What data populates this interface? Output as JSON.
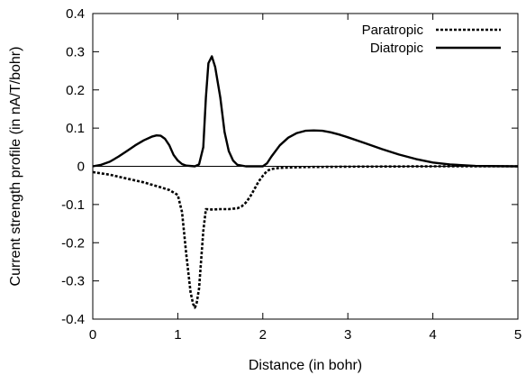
{
  "chart_data": {
    "type": "line",
    "xlabel": "Distance (in bohr)",
    "ylabel": "Current strength profile (in nA/T/bohr)",
    "xlim": [
      0,
      5
    ],
    "ylim": [
      -0.4,
      0.4
    ],
    "x_ticks": [
      "0",
      "1",
      "2",
      "3",
      "4",
      "5"
    ],
    "y_ticks": [
      "-0.4",
      "-0.3",
      "-0.2",
      "-0.1",
      "0",
      "0.1",
      "0.2",
      "0.3",
      "0.4"
    ],
    "x_tick_values": [
      0,
      1,
      2,
      3,
      4,
      5
    ],
    "y_tick_values": [
      -0.4,
      -0.3,
      -0.2,
      -0.1,
      0,
      0.1,
      0.2,
      0.3,
      0.4
    ],
    "grid": false,
    "legend_position": "top-right",
    "zero_line": true,
    "series": [
      {
        "name": "Paratropic",
        "style": "dotted",
        "color": "#000000",
        "x": [
          0,
          0.2,
          0.4,
          0.6,
          0.8,
          0.9,
          1.0,
          1.05,
          1.1,
          1.15,
          1.18,
          1.2,
          1.22,
          1.25,
          1.3,
          1.33,
          1.4,
          1.5,
          1.6,
          1.7,
          1.75,
          1.8,
          1.85,
          1.9,
          1.95,
          2.0,
          2.05,
          2.1,
          2.2,
          2.5,
          3.0,
          3.5,
          4.0,
          4.5,
          5.0
        ],
        "y": [
          -0.015,
          -0.022,
          -0.032,
          -0.042,
          -0.055,
          -0.062,
          -0.075,
          -0.12,
          -0.23,
          -0.33,
          -0.36,
          -0.37,
          -0.36,
          -0.32,
          -0.17,
          -0.112,
          -0.113,
          -0.112,
          -0.112,
          -0.11,
          -0.105,
          -0.095,
          -0.08,
          -0.06,
          -0.04,
          -0.025,
          -0.012,
          -0.007,
          -0.004,
          -0.002,
          -0.001,
          -0.0005,
          0,
          0,
          0
        ]
      },
      {
        "name": "Diatropic",
        "style": "solid",
        "color": "#000000",
        "x": [
          0,
          0.1,
          0.2,
          0.3,
          0.4,
          0.5,
          0.6,
          0.7,
          0.75,
          0.8,
          0.85,
          0.9,
          0.95,
          1.0,
          1.05,
          1.1,
          1.2,
          1.25,
          1.3,
          1.33,
          1.36,
          1.4,
          1.44,
          1.5,
          1.55,
          1.6,
          1.65,
          1.7,
          1.8,
          2.0,
          2.05,
          2.1,
          2.2,
          2.3,
          2.4,
          2.5,
          2.6,
          2.7,
          2.8,
          2.9,
          3.0,
          3.2,
          3.4,
          3.6,
          3.8,
          4.0,
          4.2,
          4.5,
          5.0
        ],
        "y": [
          0,
          0.004,
          0.012,
          0.025,
          0.04,
          0.055,
          0.068,
          0.078,
          0.081,
          0.08,
          0.072,
          0.055,
          0.03,
          0.015,
          0.006,
          0.002,
          0,
          0.005,
          0.05,
          0.18,
          0.27,
          0.288,
          0.26,
          0.18,
          0.09,
          0.04,
          0.015,
          0.004,
          0,
          0,
          0.008,
          0.025,
          0.055,
          0.075,
          0.087,
          0.093,
          0.094,
          0.093,
          0.089,
          0.083,
          0.076,
          0.061,
          0.045,
          0.031,
          0.019,
          0.01,
          0.005,
          0.001,
          0
        ]
      }
    ]
  }
}
